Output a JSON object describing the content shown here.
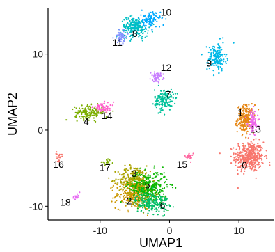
{
  "chart_data": {
    "type": "scatter",
    "xlabel": "UMAP1",
    "ylabel": "UMAP2",
    "xlim": [
      -17.5,
      15
    ],
    "ylim": [
      -11.8,
      16
    ],
    "xticks": [
      -10,
      0,
      10
    ],
    "yticks": [
      -10,
      0,
      10
    ],
    "xtick_labels": [
      "-10",
      "0",
      "10"
    ],
    "ytick_labels": [
      "-10",
      "0",
      "10"
    ],
    "grid": false,
    "legend": "none",
    "clusters": [
      {
        "label": "0",
        "color": "#F8766D",
        "cx": 11.5,
        "cy": -3.5,
        "sx": 1.4,
        "sy": 1.3,
        "n": 420
      },
      {
        "label": "1",
        "color": "#E68613",
        "cx": 11.0,
        "cy": 1.5,
        "sx": 0.8,
        "sy": 1.2,
        "n": 220
      },
      {
        "label": "2",
        "color": "#CD9600",
        "cx": -5.0,
        "cy": -8.5,
        "sx": 1.8,
        "sy": 1.2,
        "n": 300
      },
      {
        "label": "3",
        "color": "#ABA300",
        "cx": -5.0,
        "cy": -6.5,
        "sx": 1.6,
        "sy": 1.2,
        "n": 280
      },
      {
        "label": "4",
        "color": "#7CAE00",
        "cx": -11.5,
        "cy": 2.3,
        "sx": 1.4,
        "sy": 0.6,
        "n": 160
      },
      {
        "label": "5",
        "color": "#0CB702",
        "cx": -3.0,
        "cy": -7.5,
        "sx": 1.8,
        "sy": 1.4,
        "n": 300
      },
      {
        "label": "6",
        "color": "#00BE67",
        "cx": -2.5,
        "cy": -9.5,
        "sx": 1.6,
        "sy": 0.9,
        "n": 200
      },
      {
        "label": "7",
        "color": "#00C19A",
        "cx": -0.8,
        "cy": 4.0,
        "sx": 0.9,
        "sy": 0.9,
        "n": 150
      },
      {
        "label": "8",
        "color": "#00BFC4",
        "cx": -5.0,
        "cy": 13.5,
        "sx": 1.3,
        "sy": 0.9,
        "n": 220
      },
      {
        "label": "9",
        "color": "#00B8E7",
        "cx": 6.8,
        "cy": 9.5,
        "sx": 0.9,
        "sy": 1.2,
        "n": 160
      },
      {
        "label": "10",
        "color": "#00A9FF",
        "cx": -2.8,
        "cy": 14.5,
        "sx": 1.0,
        "sy": 0.7,
        "n": 100
      },
      {
        "label": "11",
        "color": "#8494FF",
        "cx": -7.0,
        "cy": 12.3,
        "sx": 0.6,
        "sy": 0.6,
        "n": 60
      },
      {
        "label": "12",
        "color": "#C77CFF",
        "cx": -1.8,
        "cy": 7.0,
        "sx": 0.6,
        "sy": 0.4,
        "n": 50
      },
      {
        "label": "13",
        "color": "#ED68ED",
        "cx": 12.0,
        "cy": 1.0,
        "sx": 0.5,
        "sy": 1.1,
        "n": 90
      },
      {
        "label": "14",
        "color": "#FF61CC",
        "cx": -9.5,
        "cy": 3.0,
        "sx": 1.0,
        "sy": 0.4,
        "n": 60
      },
      {
        "label": "15",
        "color": "#FF68A1",
        "cx": 2.8,
        "cy": -3.5,
        "sx": 0.4,
        "sy": 0.3,
        "n": 25
      },
      {
        "label": "16",
        "color": "#F8766D",
        "cx": -16.0,
        "cy": -3.5,
        "sx": 0.3,
        "sy": 0.4,
        "n": 20
      },
      {
        "label": "17",
        "color": "#7CAE00",
        "cx": -9.0,
        "cy": -4.2,
        "sx": 0.5,
        "sy": 0.2,
        "n": 20
      },
      {
        "label": "18",
        "color": "#E76BF3",
        "cx": -13.5,
        "cy": -8.8,
        "sx": 0.4,
        "sy": 0.3,
        "n": 15
      }
    ],
    "annotations": [
      {
        "text": "0",
        "x": 10.8,
        "y": -4.7
      },
      {
        "text": "1",
        "x": 10.2,
        "y": 2.2
      },
      {
        "text": "13",
        "x": 12.4,
        "y": 0.0
      },
      {
        "text": "10",
        "x": -0.5,
        "y": 15.4
      },
      {
        "text": "8",
        "x": -5.0,
        "y": 12.6
      },
      {
        "text": "11",
        "x": -7.5,
        "y": 11.4
      },
      {
        "text": "9",
        "x": 5.7,
        "y": 8.7
      },
      {
        "text": "12",
        "x": -0.5,
        "y": 8.1
      },
      {
        "text": "7",
        "x": -0.2,
        "y": 4.6
      },
      {
        "text": "4",
        "x": -12.0,
        "y": 1.0
      },
      {
        "text": "14",
        "x": -9.0,
        "y": 1.8
      },
      {
        "text": "16",
        "x": -16.0,
        "y": -4.6
      },
      {
        "text": "17",
        "x": -9.3,
        "y": -5.0
      },
      {
        "text": "15",
        "x": 1.8,
        "y": -4.6
      },
      {
        "text": "3",
        "x": -5.1,
        "y": -5.8
      },
      {
        "text": "5",
        "x": -3.2,
        "y": -7.3
      },
      {
        "text": "2",
        "x": -5.8,
        "y": -9.4
      },
      {
        "text": "6",
        "x": -1.0,
        "y": -10.0
      },
      {
        "text": "18",
        "x": -15.0,
        "y": -9.6
      }
    ]
  }
}
